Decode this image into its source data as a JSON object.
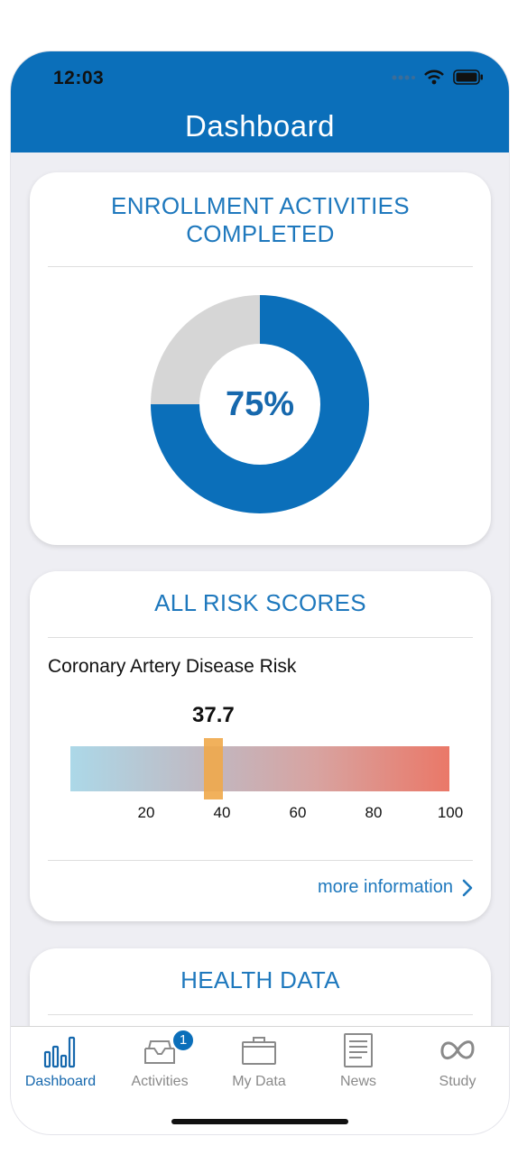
{
  "status": {
    "time": "12:03"
  },
  "header": {
    "title": "Dashboard"
  },
  "enrollment": {
    "title": "ENROLLMENT ACTIVITIES COMPLETED",
    "percent_label": "75%",
    "percent": 75,
    "colors": {
      "filled": "#0b6fba",
      "remaining": "#d6d6d6"
    }
  },
  "risk": {
    "title": "ALL RISK SCORES",
    "name": "Coronary Artery Disease Risk",
    "value_label": "37.7",
    "value": 37.7,
    "ticks": [
      "20",
      "40",
      "60",
      "80",
      "100"
    ],
    "more_label": "more information"
  },
  "health": {
    "title": "HEALTH DATA"
  },
  "tabs": [
    {
      "label": "Dashboard",
      "icon": "bar-chart-icon",
      "active": true
    },
    {
      "label": "Activities",
      "icon": "inbox-icon",
      "badge": "1"
    },
    {
      "label": "My Data",
      "icon": "briefcase-icon"
    },
    {
      "label": "News",
      "icon": "newspaper-icon"
    },
    {
      "label": "Study",
      "icon": "infinity-icon"
    }
  ]
}
